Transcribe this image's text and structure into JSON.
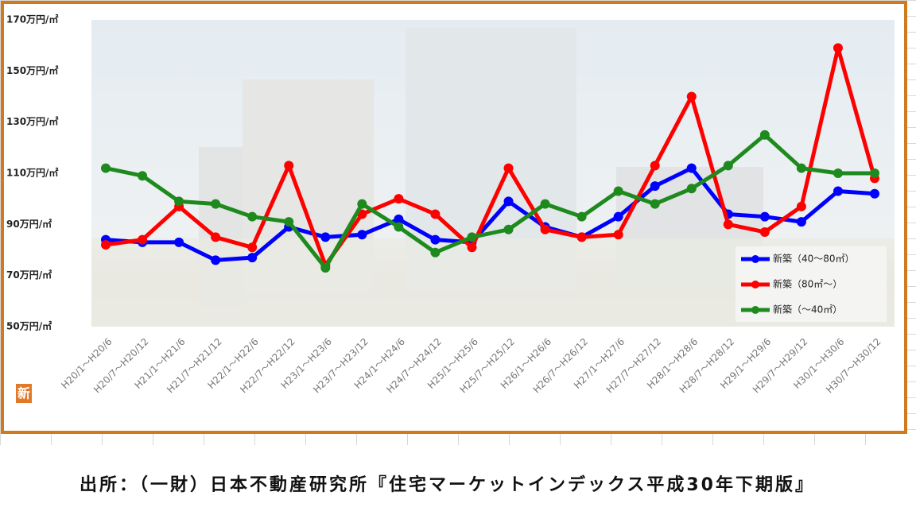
{
  "chart_data": {
    "type": "line",
    "categories": [
      "H20/1～H20/6",
      "H20/7～H20/12",
      "H21/1～H21/6",
      "H21/7～H21/12",
      "H22/1～H22/6",
      "H22/7～H22/12",
      "H23/1～H23/6",
      "H23/7～H23/12",
      "H24/1～H24/6",
      "H24/7～H24/12",
      "H25/1～H25/6",
      "H25/7～H25/12",
      "H26/1～H26/6",
      "H26/7～H26/12",
      "H27/1～H27/6",
      "H27/7～H27/12",
      "H28/1～H28/6",
      "H28/7～H28/12",
      "H29/1～H29/6",
      "H29/7～H29/12",
      "H30/1～H30/6",
      "H30/7～H30/12"
    ],
    "series": [
      {
        "name": "新築（40～80㎡）",
        "color": "#0000ff",
        "values": [
          84,
          83,
          83,
          76,
          77,
          89,
          85,
          86,
          92,
          84,
          83,
          99,
          89,
          85,
          93,
          105,
          112,
          94,
          93,
          91,
          103,
          102
        ]
      },
      {
        "name": "新築（80㎡～）",
        "color": "#ff0000",
        "values": [
          82,
          84,
          97,
          85,
          81,
          113,
          74,
          94,
          100,
          94,
          81,
          112,
          88,
          85,
          86,
          113,
          140,
          90,
          87,
          97,
          159,
          108
        ]
      },
      {
        "name": "新築（～40㎡）",
        "color": "#1e8a1e",
        "values": [
          112,
          109,
          99,
          98,
          93,
          91,
          73,
          98,
          89,
          79,
          85,
          88,
          98,
          93,
          103,
          98,
          104,
          113,
          125,
          112,
          110,
          110
        ]
      }
    ],
    "ylim": [
      50,
      170
    ],
    "yticks": [
      {
        "value": 50,
        "label": "50万円/㎡"
      },
      {
        "value": 70,
        "label": "70万円/㎡"
      },
      {
        "value": 90,
        "label": "90万円/㎡"
      },
      {
        "value": 110,
        "label": "110万円/㎡"
      },
      {
        "value": 130,
        "label": "130万円/㎡"
      },
      {
        "value": 150,
        "label": "150万円/㎡"
      },
      {
        "value": 170,
        "label": "170万円/㎡"
      }
    ],
    "grid": false,
    "legend": "lower-right",
    "badge": "新",
    "source": "出所：（一財）日本不動産研究所『住宅マーケットインデックス平成30年下期版』"
  }
}
